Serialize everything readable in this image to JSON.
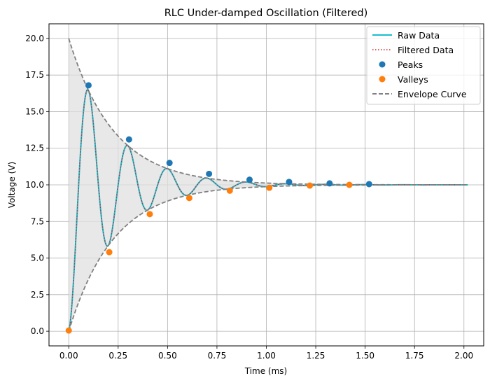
{
  "chart_data": {
    "type": "line",
    "title": "RLC Under-damped Oscillation (Filtered)",
    "xlabel": "Time (ms)",
    "ylabel": "Voltage (V)",
    "xlim": [
      -0.1,
      2.1
    ],
    "ylim": [
      -1.0,
      21.0
    ],
    "xticks": [
      0.0,
      0.25,
      0.5,
      0.75,
      1.0,
      1.25,
      1.5,
      1.75,
      2.0
    ],
    "xtick_labels": [
      "0.00",
      "0.25",
      "0.50",
      "0.75",
      "1.00",
      "1.25",
      "1.50",
      "1.75",
      "2.00"
    ],
    "yticks": [
      0.0,
      2.5,
      5.0,
      7.5,
      10.0,
      12.5,
      15.0,
      17.5,
      20.0
    ],
    "ytick_labels": [
      "0.0",
      "2.5",
      "5.0",
      "7.5",
      "10.0",
      "12.5",
      "15.0",
      "17.5",
      "20.0"
    ],
    "grid": true,
    "legend_position": "top-right",
    "model": {
      "steady_state_V": 10.0,
      "initial_amplitude_V": 10.0,
      "decay_rate_per_ms": 4.4,
      "period_ms": 0.2,
      "t_end_ms": 2.02
    },
    "series": [
      {
        "name": "Raw Data",
        "kind": "line",
        "color": "#17becf"
      },
      {
        "name": "Filtered Data",
        "kind": "dotted-line",
        "color": "#d62728"
      },
      {
        "name": "Peaks",
        "kind": "markers",
        "color": "#1f77b4",
        "x": [
          0.1,
          0.305,
          0.51,
          0.71,
          0.915,
          1.115,
          1.32,
          1.52
        ],
        "y": [
          16.8,
          13.1,
          11.5,
          10.75,
          10.35,
          10.2,
          10.1,
          10.05
        ]
      },
      {
        "name": "Valleys",
        "kind": "markers",
        "color": "#ff7f0e",
        "x": [
          0.0,
          0.205,
          0.41,
          0.61,
          0.815,
          1.015,
          1.22,
          1.42
        ],
        "y": [
          0.05,
          5.4,
          8.0,
          9.1,
          9.6,
          9.8,
          9.95,
          10.0
        ]
      },
      {
        "name": "Envelope Curve",
        "kind": "dashed-line",
        "color": "#808080"
      }
    ],
    "colors": {
      "grid": "#b0b0b0",
      "envelope_fill": "#e0e0e0",
      "axis": "#000000"
    }
  }
}
